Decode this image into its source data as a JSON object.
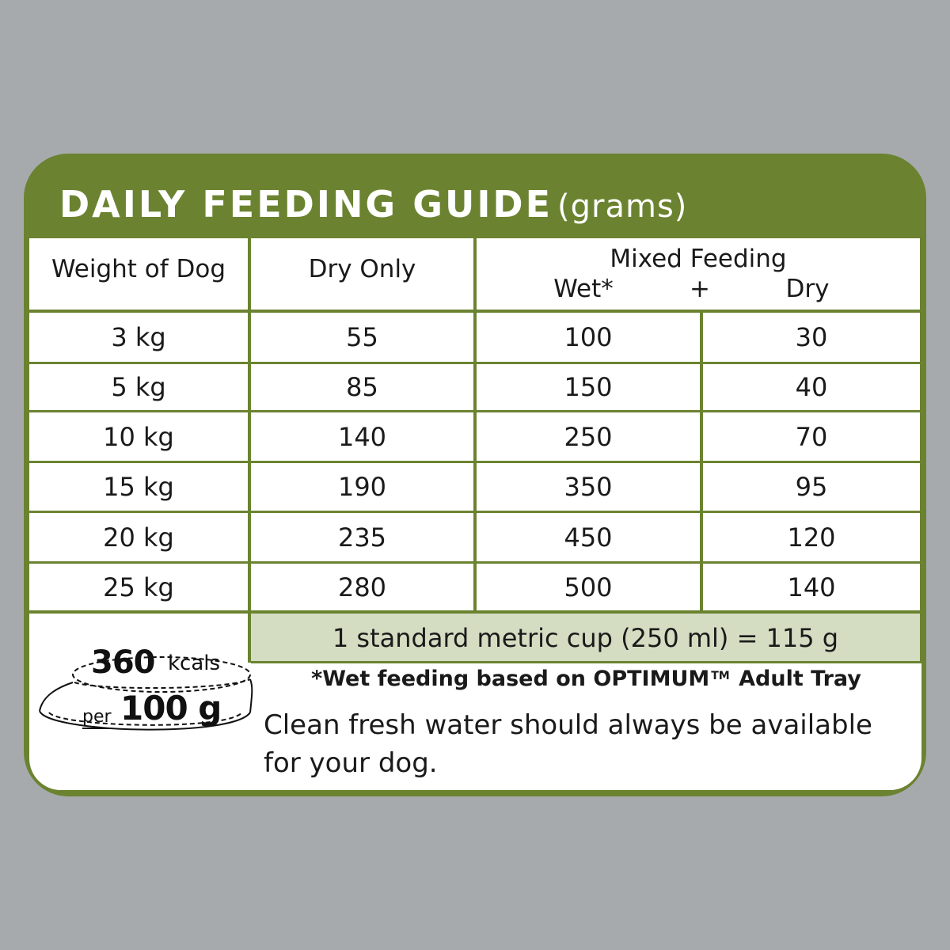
{
  "title": {
    "main": "DAILY FEEDING GUIDE",
    "unit": "(grams)"
  },
  "headers": {
    "weight": "Weight of Dog",
    "dry_only": "Dry Only",
    "mixed": "Mixed Feeding",
    "wet": "Wet*",
    "plus": "+",
    "dry": "Dry"
  },
  "rows": [
    {
      "weight": "3 kg",
      "dry_only": "55",
      "wet": "100",
      "dry": "30"
    },
    {
      "weight": "5 kg",
      "dry_only": "85",
      "wet": "150",
      "dry": "40"
    },
    {
      "weight": "10 kg",
      "dry_only": "140",
      "wet": "250",
      "dry": "70"
    },
    {
      "weight": "15 kg",
      "dry_only": "190",
      "wet": "350",
      "dry": "95"
    },
    {
      "weight": "20 kg",
      "dry_only": "235",
      "wet": "450",
      "dry": "120"
    },
    {
      "weight": "25 kg",
      "dry_only": "280",
      "wet": "500",
      "dry": "140"
    }
  ],
  "cup_note": "1 standard metric cup (250 ml) = 115 g",
  "footnote": {
    "before": "*Wet feeding based on OPTIMUM",
    "tm": "TM",
    "after": " Adult Tray"
  },
  "water_note": "Clean fresh water should always be available for your dog.",
  "energy": {
    "value": "360",
    "unit": "kcals",
    "per": "per",
    "amount": "100 g"
  },
  "colors": {
    "brand_green": "#6b8330",
    "cup_band": "#d4dcc2",
    "background": "#a7aaad"
  }
}
